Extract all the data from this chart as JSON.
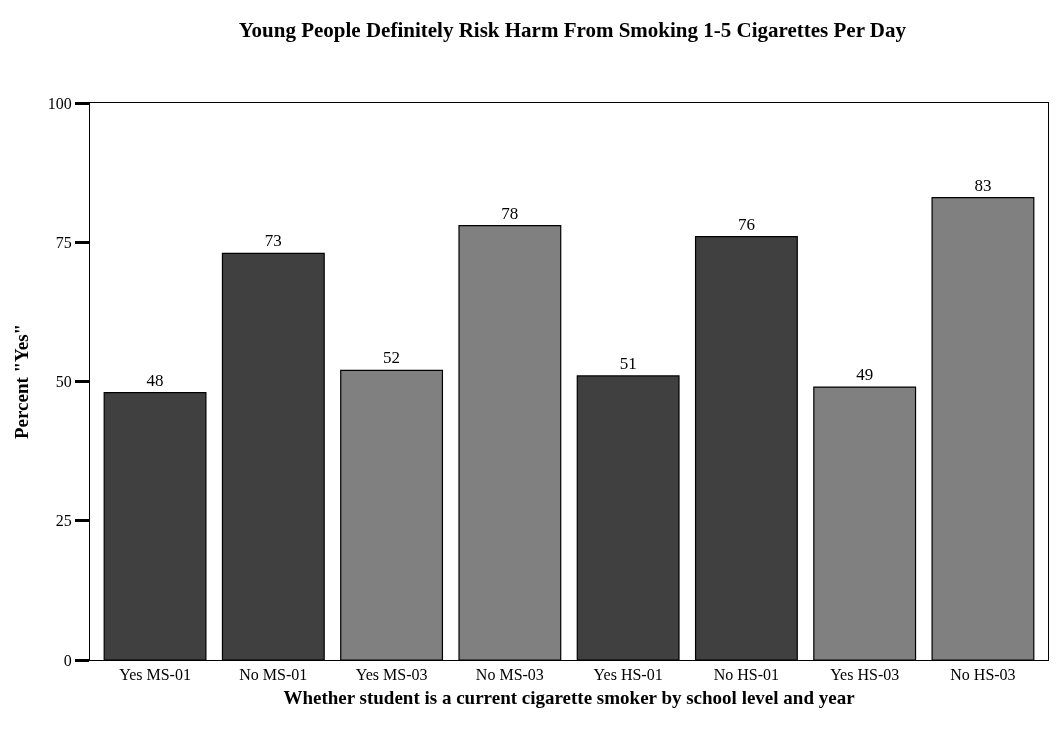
{
  "chart_data": {
    "type": "bar",
    "title": "Young People Definitely Risk Harm From Smoking 1-5 Cigarettes Per Day",
    "xlabel": "Whether student is a current cigarette smoker by school level and year",
    "ylabel": "Percent \"Yes\"",
    "categories": [
      "Yes MS-01",
      "No MS-01",
      "Yes MS-03",
      "No MS-03",
      "Yes HS-01",
      "No HS-01",
      "Yes HS-03",
      "No HS-03"
    ],
    "values": [
      48,
      73,
      52,
      78,
      51,
      76,
      49,
      83
    ],
    "colors": [
      "#404040",
      "#404040",
      "#808080",
      "#808080",
      "#404040",
      "#404040",
      "#808080",
      "#808080"
    ],
    "ylim": [
      0,
      100
    ],
    "yticks": [
      0,
      25,
      50,
      75,
      100
    ],
    "data_labels": true,
    "grid": false
  }
}
